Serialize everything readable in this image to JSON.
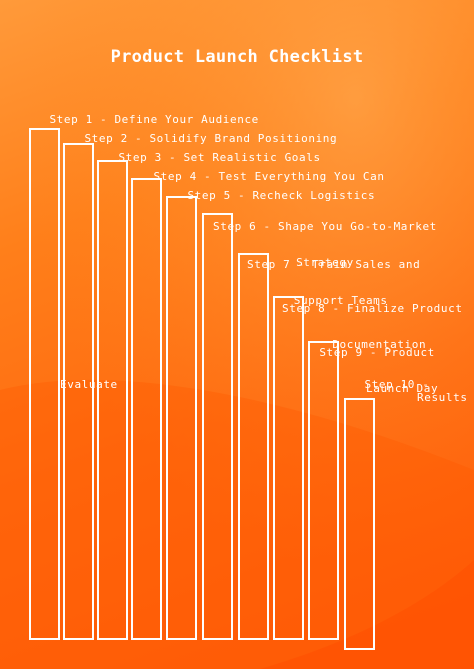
{
  "title": "Product Launch Checklist",
  "steps": [
    {
      "line1": "Step 1 - Define Your Audience",
      "line2": ""
    },
    {
      "line1": "Step 2 - Solidify Brand Positioning",
      "line2": ""
    },
    {
      "line1": "Step 3 - Set Realistic Goals",
      "line2": ""
    },
    {
      "line1": "Step 4 - Test Everything You Can",
      "line2": ""
    },
    {
      "line1": "Step 5 - Recheck Logistics",
      "line2": ""
    },
    {
      "line1": "Step 6 - Shape You Go-to-Market",
      "line2": "Strategy"
    },
    {
      "line1": "Step 7 - Train Sales and",
      "line2": "Support Teams"
    },
    {
      "line1": "Step 8 - Finalize Product",
      "line2": "Documentation"
    },
    {
      "line1": "Step 9 - Product",
      "line2": "Launch Day"
    },
    {
      "line1": "Step 10 -",
      "line2": ""
    }
  ],
  "stray_words": {
    "evaluate": "Evaluate",
    "results": "Results"
  },
  "colors": {
    "background_top": "#ff9a3a",
    "background_bottom": "#ff5a08",
    "outline": "#ffffff",
    "text": "#ffffff"
  }
}
